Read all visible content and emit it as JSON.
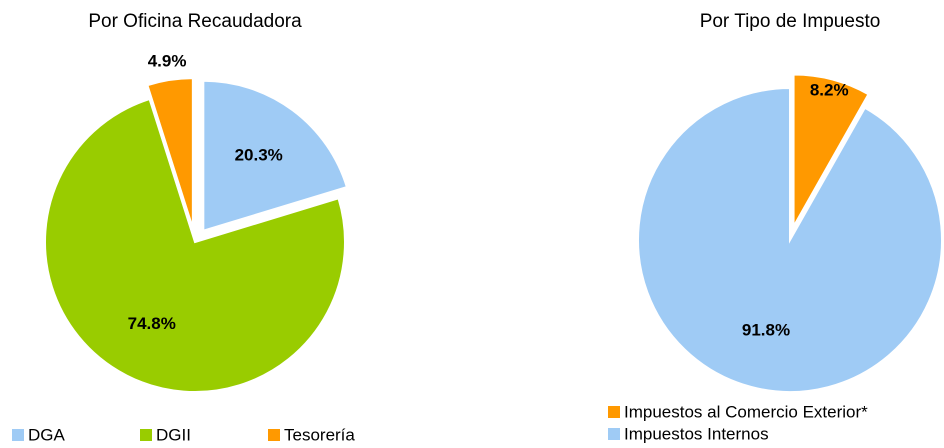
{
  "chart_data": [
    {
      "type": "pie",
      "title": "Por Oficina Recaudadora",
      "categories": [
        "DGA",
        "DGII",
        "Tesorería"
      ],
      "values": [
        20.3,
        74.8,
        4.9
      ],
      "value_labels": [
        "20.3%",
        "74.8%",
        "4.9%"
      ],
      "colors": [
        "#9fcbf5",
        "#99cc00",
        "#ff9900"
      ],
      "legend": "bottom"
    },
    {
      "type": "pie",
      "title": "Por Tipo de Impuesto",
      "categories": [
        "Impuestos al Comercio Exterior*",
        "Impuestos Internos"
      ],
      "values": [
        8.2,
        91.8
      ],
      "value_labels": [
        "8.2%",
        "91.8%"
      ],
      "colors": [
        "#ff9900",
        "#9fcbf5"
      ],
      "legend": "bottom"
    }
  ]
}
